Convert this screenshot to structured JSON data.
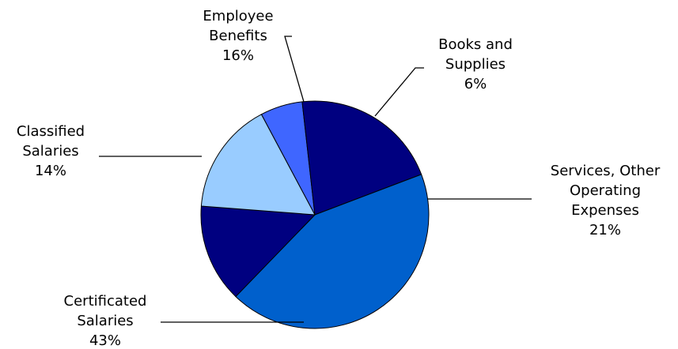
{
  "chart_data": {
    "type": "pie",
    "title": "",
    "slices": [
      {
        "label_lines": [
          "Books and",
          "Supplies",
          "6%"
        ],
        "value": 6,
        "color": "#3f66ff"
      },
      {
        "label_lines": [
          "Services, Other",
          "Operating",
          "Expenses",
          "21%"
        ],
        "value": 21,
        "color": "#000080"
      },
      {
        "label_lines": [
          "Certificated",
          "Salaries",
          "43%"
        ],
        "value": 43,
        "color": "#0060cc"
      },
      {
        "label_lines": [
          "Classified",
          "Salaries",
          "14%"
        ],
        "value": 14,
        "color": "#000080"
      },
      {
        "label_lines": [
          "Employee",
          "Benefits",
          "16%"
        ],
        "value": 16,
        "color": "#99ccff"
      }
    ]
  }
}
